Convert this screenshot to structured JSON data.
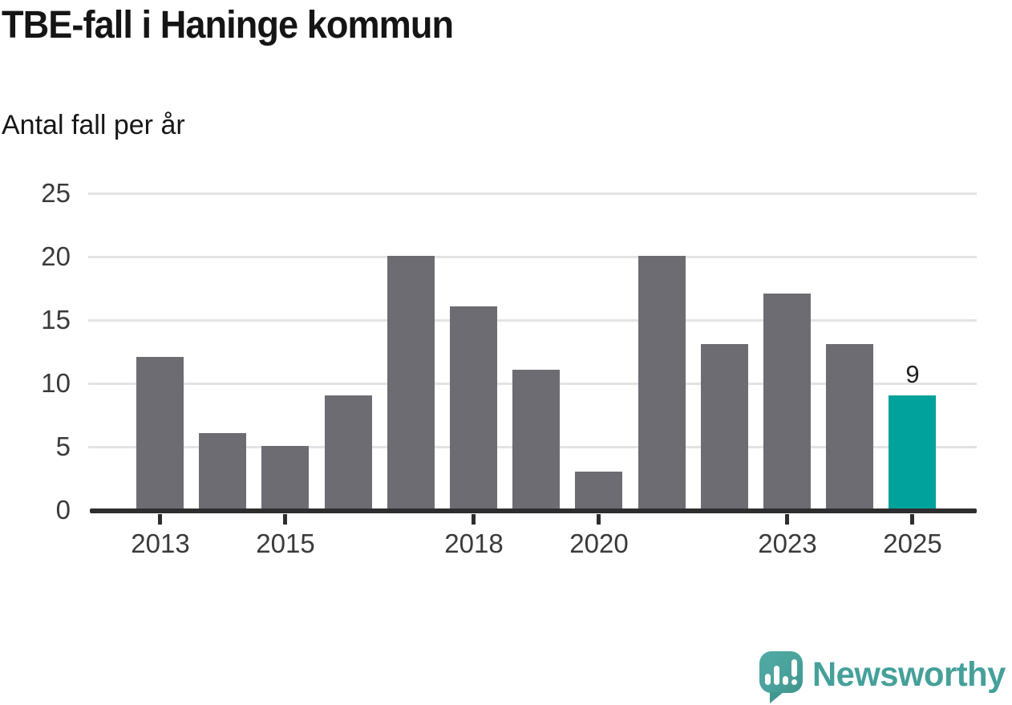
{
  "header": {
    "title": "TBE-fall i Haninge kommun",
    "subtitle": "Antal fall per år"
  },
  "chart_data": {
    "type": "bar",
    "title": "TBE-fall i Haninge kommun",
    "subtitle": "Antal fall per år",
    "categories": [
      2013,
      2014,
      2015,
      2016,
      2017,
      2018,
      2019,
      2020,
      2021,
      2022,
      2023,
      2024,
      2025
    ],
    "values": [
      12,
      6,
      5,
      9,
      20,
      16,
      11,
      3,
      20,
      13,
      17,
      13,
      9
    ],
    "highlight_index": 12,
    "highlight_value_label": "9",
    "xlabel": "",
    "ylabel": "Antal fall per år",
    "ylim": [
      0,
      25
    ],
    "yticks": [
      0,
      5,
      10,
      15,
      20,
      25
    ],
    "xticks": [
      2013,
      2015,
      2018,
      2020,
      2023,
      2025
    ],
    "grid": true,
    "legend_position": "none",
    "bar_color": "#6d6c73",
    "highlight_color": "#00a29b",
    "gridline_color": "#e3e3e3",
    "axis_color": "#2e2e30",
    "tick_label_color": "#3a3a3a"
  },
  "branding": {
    "logo_text": "Newsworthy",
    "logo_color": "#45a09a",
    "logo_icon": "speech-bubble-bar-chart-exclamation"
  }
}
